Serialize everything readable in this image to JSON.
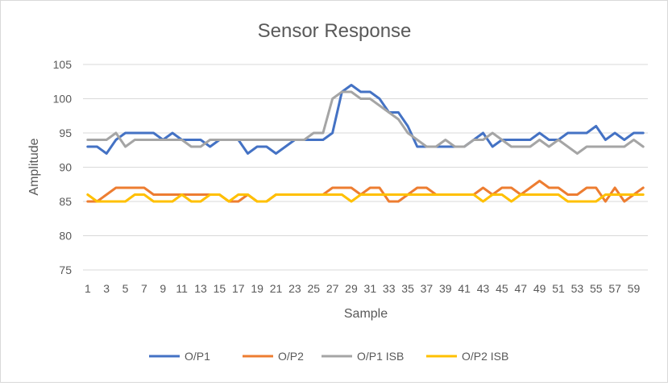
{
  "chart_data": {
    "type": "line",
    "title": "Sensor Response",
    "xlabel": "Sample",
    "ylabel": "Amplitude",
    "ylim": [
      75,
      105
    ],
    "y_ticks": [
      75,
      80,
      85,
      90,
      95,
      100,
      105
    ],
    "x_tick_labels": [
      "1",
      "3",
      "5",
      "7",
      "9",
      "11",
      "13",
      "15",
      "17",
      "19",
      "21",
      "23",
      "25",
      "27",
      "29",
      "31",
      "33",
      "35",
      "37",
      "39",
      "41",
      "43",
      "45",
      "47",
      "49",
      "51",
      "53",
      "55",
      "57",
      "59"
    ],
    "grid": true,
    "legend_position": "bottom",
    "x": [
      1,
      2,
      3,
      4,
      5,
      6,
      7,
      8,
      9,
      10,
      11,
      12,
      13,
      14,
      15,
      16,
      17,
      18,
      19,
      20,
      21,
      22,
      23,
      24,
      25,
      26,
      27,
      28,
      29,
      30,
      31,
      32,
      33,
      34,
      35,
      36,
      37,
      38,
      39,
      40,
      41,
      42,
      43,
      44,
      45,
      46,
      47,
      48,
      49,
      50,
      51,
      52,
      53,
      54,
      55,
      56,
      57,
      58,
      59,
      60
    ],
    "series": [
      {
        "name": "O/P1",
        "color": "#4472C4",
        "values": [
          93,
          93,
          92,
          94,
          95,
          95,
          95,
          95,
          94,
          95,
          94,
          94,
          94,
          93,
          94,
          94,
          94,
          92,
          93,
          93,
          92,
          93,
          94,
          94,
          94,
          94,
          95,
          101,
          102,
          101,
          101,
          100,
          98,
          98,
          96,
          93,
          93,
          93,
          93,
          93,
          93,
          94,
          95,
          93,
          94,
          94,
          94,
          94,
          95,
          94,
          94,
          95,
          95,
          95,
          96,
          94,
          95,
          94,
          95,
          95
        ]
      },
      {
        "name": "O/P2",
        "color": "#ED7D31",
        "values": [
          85,
          85,
          86,
          87,
          87,
          87,
          87,
          86,
          86,
          86,
          86,
          86,
          86,
          86,
          86,
          85,
          85,
          86,
          85,
          85,
          86,
          86,
          86,
          86,
          86,
          86,
          87,
          87,
          87,
          86,
          87,
          87,
          85,
          85,
          86,
          87,
          87,
          86,
          86,
          86,
          86,
          86,
          87,
          86,
          87,
          87,
          86,
          87,
          88,
          87,
          87,
          86,
          86,
          87,
          87,
          85,
          87,
          85,
          86,
          87
        ]
      },
      {
        "name": "O/P1 ISB",
        "color": "#A5A5A5",
        "values": [
          94,
          94,
          94,
          95,
          93,
          94,
          94,
          94,
          94,
          94,
          94,
          93,
          93,
          94,
          94,
          94,
          94,
          94,
          94,
          94,
          94,
          94,
          94,
          94,
          95,
          95,
          100,
          101,
          101,
          100,
          100,
          99,
          98,
          97,
          95,
          94,
          93,
          93,
          94,
          93,
          93,
          94,
          94,
          95,
          94,
          93,
          93,
          93,
          94,
          93,
          94,
          93,
          92,
          93,
          93,
          93,
          93,
          93,
          94,
          93
        ]
      },
      {
        "name": "O/P2 ISB",
        "color": "#FFC000",
        "values": [
          86,
          85,
          85,
          85,
          85,
          86,
          86,
          85,
          85,
          85,
          86,
          85,
          85,
          86,
          86,
          85,
          86,
          86,
          85,
          85,
          86,
          86,
          86,
          86,
          86,
          86,
          86,
          86,
          85,
          86,
          86,
          86,
          86,
          86,
          86,
          86,
          86,
          86,
          86,
          86,
          86,
          86,
          85,
          86,
          86,
          85,
          86,
          86,
          86,
          86,
          86,
          85,
          85,
          85,
          85,
          86,
          86,
          86,
          86,
          86
        ]
      }
    ]
  }
}
